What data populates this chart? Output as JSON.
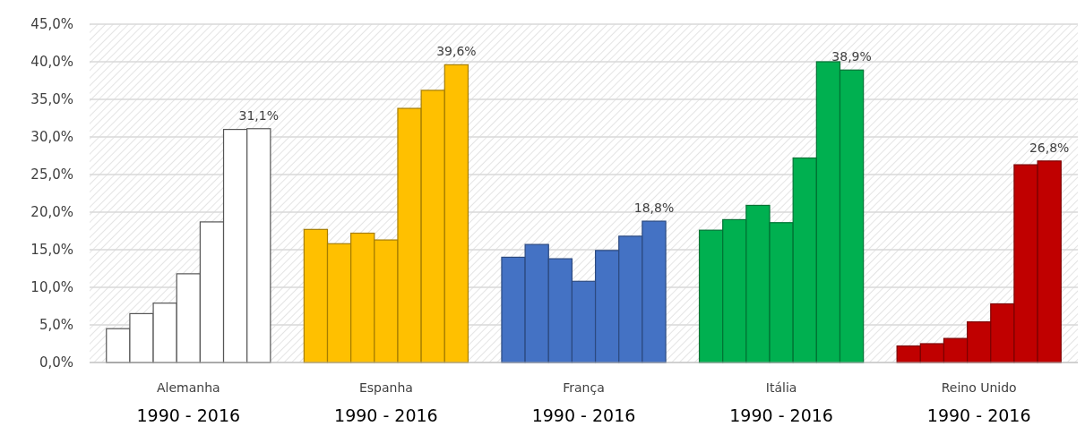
{
  "chart_data": {
    "type": "bar",
    "categories": [
      "Alemanha",
      "Espanha",
      "França",
      "Itália",
      "Reino Unido"
    ],
    "series": [
      {
        "colors": [
          "#ffffff",
          "#ffc000",
          "#4472c4",
          "#00b050",
          "#c00000"
        ],
        "values": [
          4.5,
          17.7,
          14.0,
          17.6,
          2.2
        ]
      },
      {
        "colors": [
          "#ffffff",
          "#ffc000",
          "#4472c4",
          "#00b050",
          "#c00000"
        ],
        "values": [
          6.5,
          15.8,
          15.7,
          19.0,
          2.5
        ]
      },
      {
        "colors": [
          "#ffffff",
          "#ffc000",
          "#4472c4",
          "#00b050",
          "#c00000"
        ],
        "values": [
          7.9,
          17.2,
          13.8,
          20.9,
          3.2
        ]
      },
      {
        "colors": [
          "#ffffff",
          "#ffc000",
          "#4472c4",
          "#00b050",
          "#c00000"
        ],
        "values": [
          11.8,
          16.3,
          10.8,
          18.6,
          5.4
        ]
      },
      {
        "colors": [
          "#ffffff",
          "#ffc000",
          "#4472c4",
          "#00b050",
          "#c00000"
        ],
        "values": [
          18.7,
          33.8,
          14.9,
          27.2,
          7.8
        ]
      },
      {
        "colors": [
          "#ffffff",
          "#ffc000",
          "#4472c4",
          "#00b050",
          "#c00000"
        ],
        "values": [
          31.0,
          36.2,
          16.8,
          40.0,
          26.3
        ]
      },
      {
        "colors": [
          "#ffffff",
          "#ffc000",
          "#4472c4",
          "#00b050",
          "#c00000"
        ],
        "values": [
          31.1,
          39.6,
          18.8,
          38.9,
          26.8
        ],
        "value_labels": [
          "31,1%",
          "39,6%",
          "18,8%",
          "38,9%",
          "26,8%"
        ]
      }
    ],
    "ylim": [
      0,
      45
    ],
    "yticks": [
      {
        "value": 0,
        "label": "0,0%"
      },
      {
        "value": 5,
        "label": "5,0%"
      },
      {
        "value": 10,
        "label": "10,0%"
      },
      {
        "value": 15,
        "label": "15,0%"
      },
      {
        "value": 20,
        "label": "20,0%"
      },
      {
        "value": 25,
        "label": "25,0%"
      },
      {
        "value": 30,
        "label": "30,0%"
      },
      {
        "value": 35,
        "label": "35,0%"
      },
      {
        "value": 40,
        "label": "40,0%"
      },
      {
        "value": 45,
        "label": "45,0%"
      }
    ],
    "grid": "y",
    "annotations": [
      "1990 - 2016",
      "1990 - 2016",
      "1990 - 2016",
      "1990 - 2016",
      "1990 - 2016"
    ]
  }
}
